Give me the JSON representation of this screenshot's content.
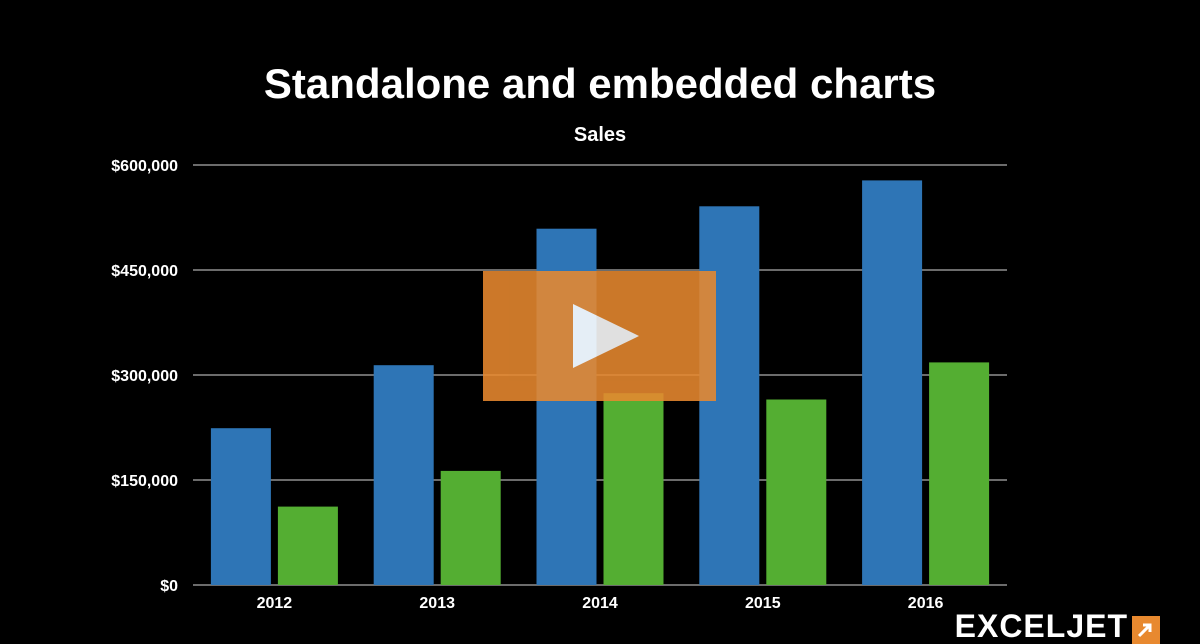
{
  "page": {
    "title": "Standalone and embedded charts"
  },
  "chart_data": {
    "type": "bar",
    "title": "Sales",
    "xlabel": "",
    "ylabel": "",
    "categories": [
      "2012",
      "2013",
      "2014",
      "2015",
      "2016"
    ],
    "series": [
      {
        "color": "#2e75b6",
        "values": [
          224000,
          314000,
          509000,
          541000,
          578000
        ]
      },
      {
        "color": "#54ae32",
        "values": [
          112000,
          163000,
          274000,
          265000,
          318000
        ]
      }
    ],
    "ylim": [
      0,
      600000
    ],
    "yticks": [
      0,
      150000,
      300000,
      450000,
      600000
    ],
    "ytick_labels": [
      "$0",
      "$150,000",
      "$300,000",
      "$450,000",
      "$600,000"
    ],
    "grid": true,
    "legend": "none"
  },
  "overlay": {
    "icon": "play-icon",
    "color": "#e8892f"
  },
  "logo": {
    "text": "EXCELJET",
    "color": "#e8892f"
  }
}
